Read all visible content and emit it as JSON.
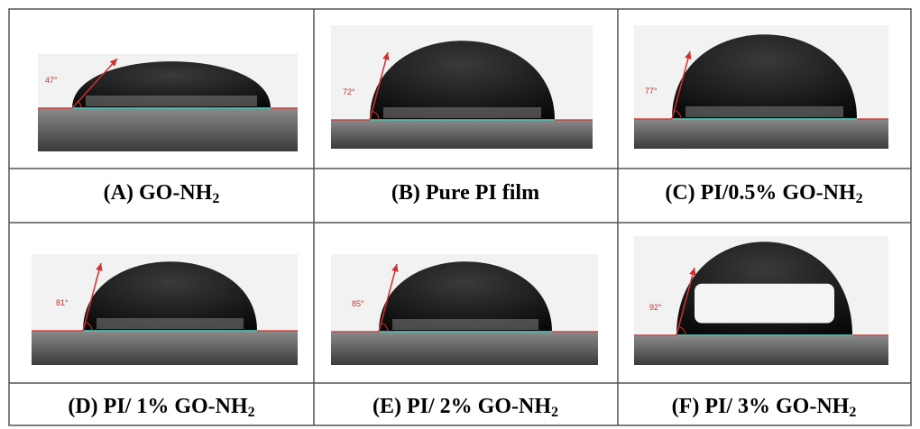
{
  "panels": [
    {
      "caption": {
        "text": "(A) GO-NH",
        "sub": "2"
      },
      "angle": "47°"
    },
    {
      "caption": {
        "text": "(B) Pure PI film",
        "sub": ""
      },
      "angle": "72°"
    },
    {
      "caption": {
        "text": "(C) PI/0.5% GO-NH",
        "sub": "2"
      },
      "angle": "77°"
    },
    {
      "caption": {
        "text": "(D) PI/ 1% GO-NH",
        "sub": "2"
      },
      "angle": "81°"
    },
    {
      "caption": {
        "text": "(E) PI/ 2% GO-NH",
        "sub": "2"
      },
      "angle": "85°"
    },
    {
      "caption": {
        "text": "(F) PI/ 3% GO-NH",
        "sub": "2"
      },
      "angle": "92°"
    }
  ]
}
